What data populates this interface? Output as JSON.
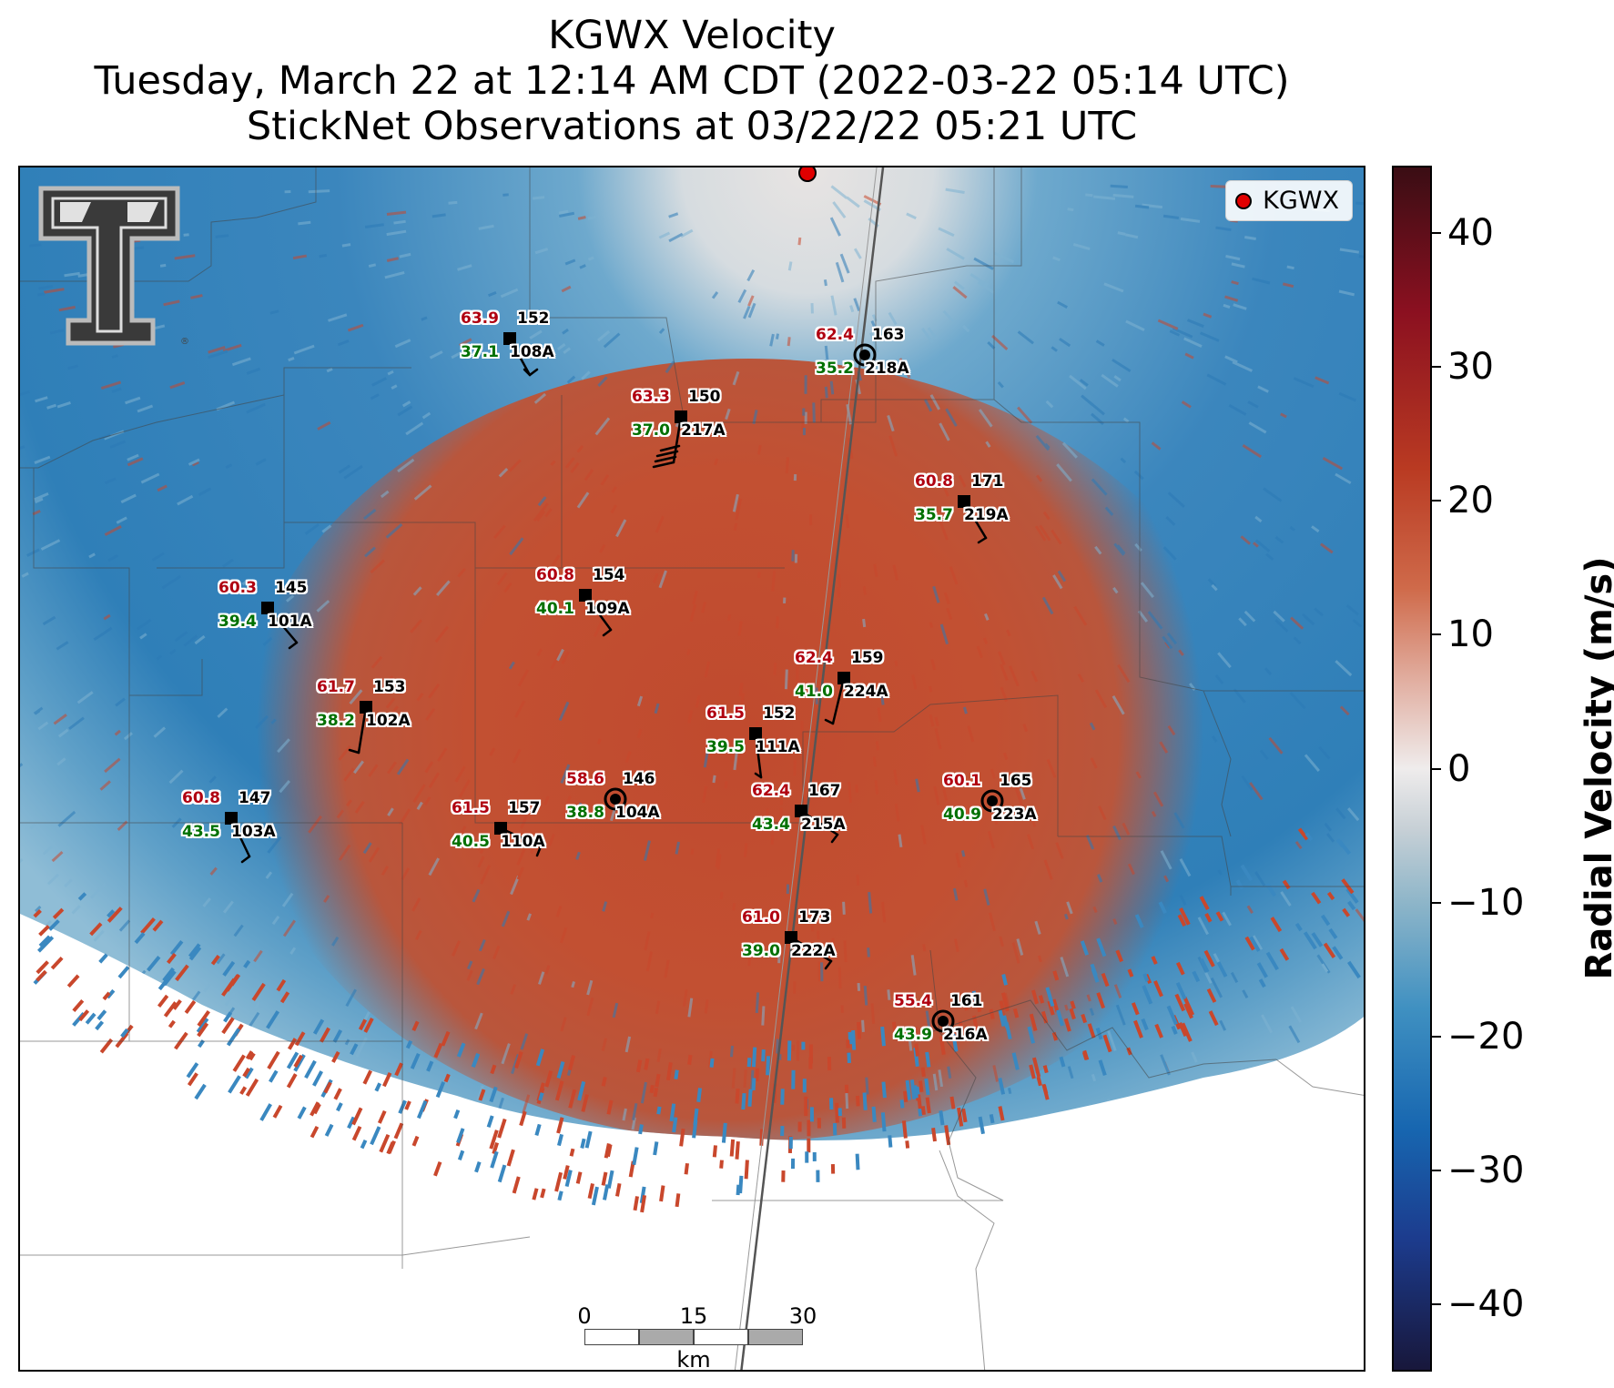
{
  "title": {
    "line1": "KGWX Velocity",
    "line2": "Tuesday, March 22 at 12:14 AM CDT (2022-03-22 05:14 UTC)",
    "line3": "StickNet Observations at 03/22/22 05:21 UTC"
  },
  "legend": {
    "label": "KGWX",
    "marker_color": "#e00000"
  },
  "colorbar": {
    "title": "Radial Velocity (m/s)",
    "range": [
      -45,
      45
    ],
    "ticks": [
      "40",
      "30",
      "20",
      "10",
      "0",
      "−10",
      "−20",
      "−30",
      "−40"
    ],
    "colors": {
      "positive": "#c0432d",
      "negative": "#2b7bb7",
      "zero": "#efecec"
    }
  },
  "scale_bar": {
    "labels": [
      "0",
      "15",
      "30"
    ],
    "unit": "km"
  },
  "logo": {
    "name": "texas-tech-double-t-logo"
  },
  "stations": [
    {
      "id": "108A",
      "temp": "63.9",
      "dew": "37.1",
      "pres": "152"
    },
    {
      "id": "218A",
      "temp": "62.4",
      "dew": "35.2",
      "pres": "163"
    },
    {
      "id": "217A",
      "temp": "63.3",
      "dew": "37.0",
      "pres": "150"
    },
    {
      "id": "219A",
      "temp": "60.8",
      "dew": "35.7",
      "pres": "171"
    },
    {
      "id": "101A",
      "temp": "60.3",
      "dew": "39.4",
      "pres": "145"
    },
    {
      "id": "109A",
      "temp": "60.8",
      "dew": "40.1",
      "pres": "154"
    },
    {
      "id": "224A",
      "temp": "62.4",
      "dew": "41.0",
      "pres": "159"
    },
    {
      "id": "102A",
      "temp": "61.7",
      "dew": "38.2",
      "pres": "153"
    },
    {
      "id": "111A",
      "temp": "61.5",
      "dew": "39.5",
      "pres": "152"
    },
    {
      "id": "104A",
      "temp": "58.6",
      "dew": "38.8",
      "pres": "146"
    },
    {
      "id": "223A",
      "temp": "60.1",
      "dew": "40.9",
      "pres": "165"
    },
    {
      "id": "103A",
      "temp": "60.8",
      "dew": "43.5",
      "pres": "147"
    },
    {
      "id": "110A",
      "temp": "61.5",
      "dew": "40.5",
      "pres": "157"
    },
    {
      "id": "215A",
      "temp": "62.4",
      "dew": "43.4",
      "pres": "167"
    },
    {
      "id": "222A",
      "temp": "61.0",
      "dew": "39.0",
      "pres": "173"
    },
    {
      "id": "216A",
      "temp": "55.4",
      "dew": "43.9",
      "pres": "161"
    }
  ]
}
